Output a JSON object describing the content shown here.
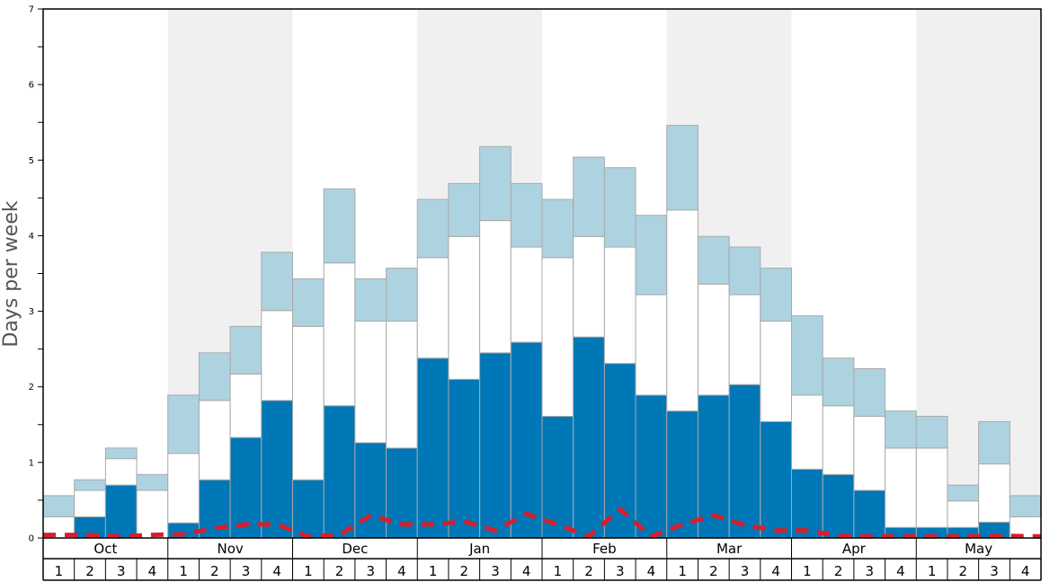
{
  "chart_data": {
    "type": "bar",
    "ylabel": "Days per week",
    "ylim": [
      0,
      7
    ],
    "yticks": [
      0,
      1,
      2,
      3,
      4,
      5,
      6,
      7
    ],
    "months": [
      "Oct",
      "Nov",
      "Dec",
      "Jan",
      "Feb",
      "Mar",
      "Apr",
      "May"
    ],
    "weeks": [
      "1",
      "2",
      "3",
      "4"
    ],
    "series": [
      {
        "color": "#0077b6",
        "values": [
          0.0,
          0.28,
          0.7,
          0.0,
          0.2,
          0.77,
          1.33,
          1.82,
          0.77,
          1.75,
          1.26,
          1.19,
          2.38,
          2.1,
          2.45,
          2.59,
          1.61,
          2.66,
          2.31,
          1.89,
          1.68,
          1.89,
          2.03,
          1.54,
          0.91,
          0.84,
          0.63,
          0.14,
          0.14,
          0.14,
          0.21,
          0.0
        ]
      },
      {
        "color": "#ffffff",
        "values": [
          0.28,
          0.35,
          0.35,
          0.63,
          0.92,
          1.05,
          0.84,
          1.19,
          2.03,
          1.89,
          1.61,
          1.68,
          1.33,
          1.89,
          1.75,
          1.26,
          2.1,
          1.33,
          1.54,
          1.33,
          2.66,
          1.47,
          1.19,
          1.33,
          0.98,
          0.91,
          0.98,
          1.05,
          1.05,
          0.35,
          0.77,
          0.28
        ]
      },
      {
        "color": "#aed3e0",
        "values": [
          0.28,
          0.14,
          0.14,
          0.21,
          0.77,
          0.63,
          0.63,
          0.77,
          0.63,
          0.98,
          0.56,
          0.7,
          0.77,
          0.7,
          0.98,
          0.84,
          0.77,
          1.05,
          1.05,
          1.05,
          1.12,
          0.63,
          0.63,
          0.7,
          1.05,
          0.63,
          0.63,
          0.49,
          0.42,
          0.21,
          0.56,
          0.28
        ]
      }
    ],
    "line": {
      "color": "#d81e2c",
      "style": "dashed",
      "values": [
        0.04,
        0.04,
        0.02,
        0.04,
        0.05,
        0.13,
        0.18,
        0.18,
        0.02,
        0.04,
        0.3,
        0.18,
        0.18,
        0.22,
        0.1,
        0.32,
        0.18,
        0.02,
        0.38,
        0.02,
        0.18,
        0.3,
        0.17,
        0.1,
        0.1,
        0.03,
        0.02,
        0.02,
        0.02,
        0.02,
        0.03,
        0.02
      ]
    },
    "shaded_months": [
      "Nov",
      "Jan",
      "Mar",
      "May"
    ],
    "grid": false
  }
}
